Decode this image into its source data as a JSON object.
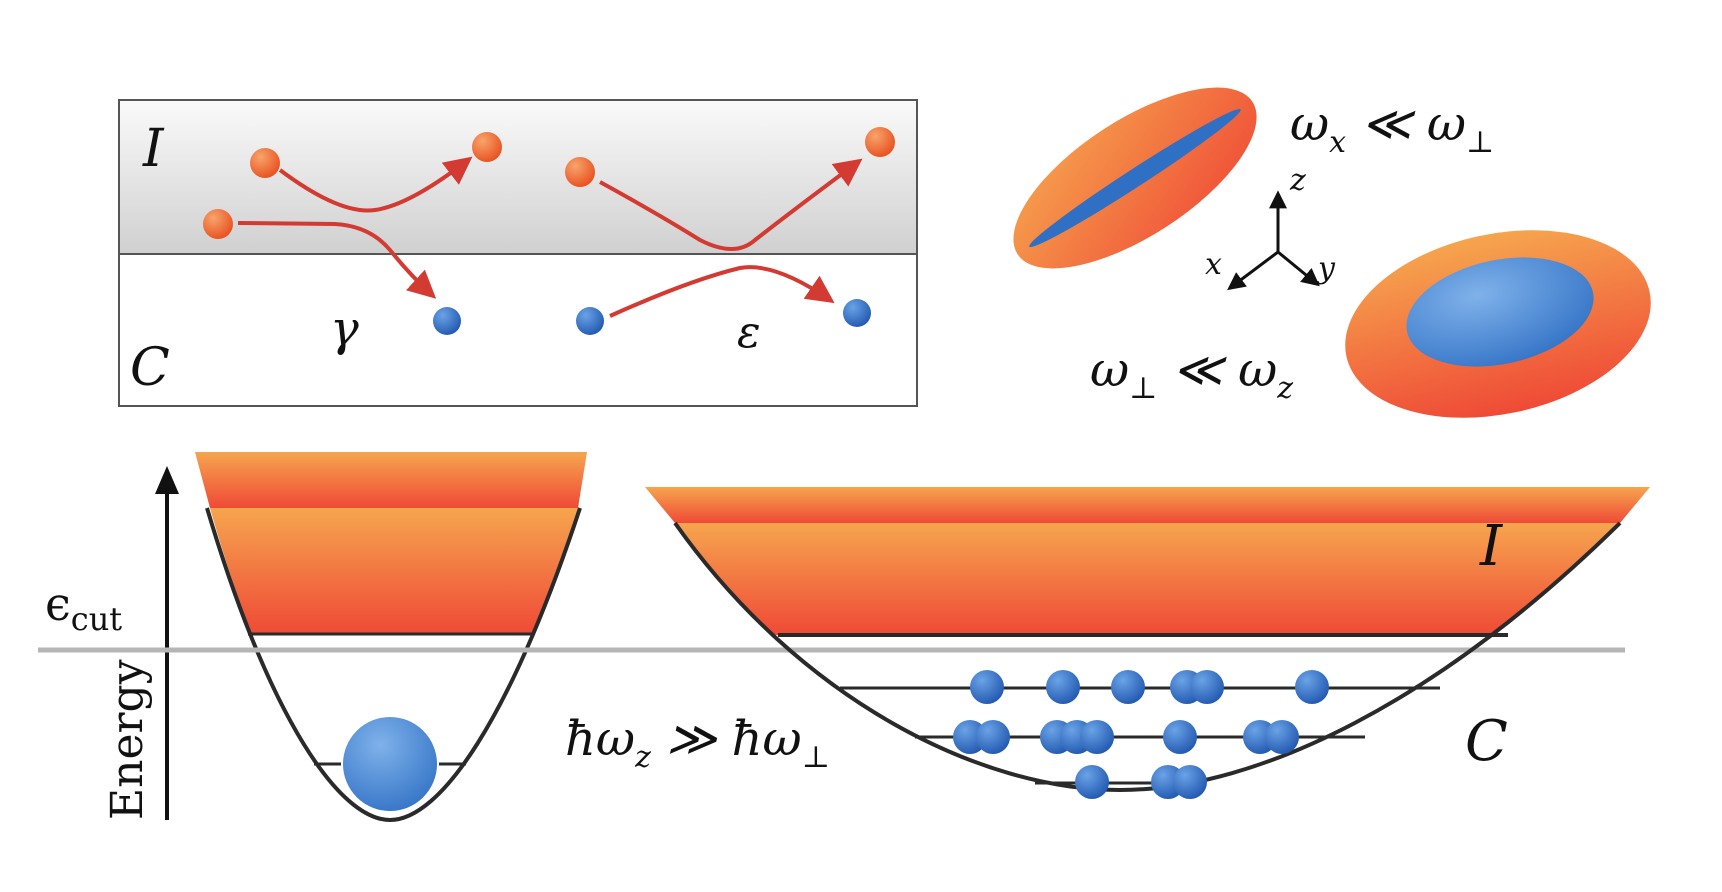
{
  "colors": {
    "incoherent_top": "#f6a54e",
    "incoherent_bottom": "#ef4a36",
    "particle_orange": "#f26a2e",
    "particle_blue": "#2f6fc4",
    "arrow_red": "#d33a32",
    "band_gray": "#d6d6d6",
    "cut_line": "#b5b5b5",
    "curve": "#2a2a2a"
  },
  "inset": {
    "region_top": "I",
    "region_bottom": "C",
    "process_left": "γ",
    "process_right": "ε"
  },
  "traps": {
    "elongated": "ωx ≪ ω⊥",
    "flat": "ω⊥ ≪ ωz",
    "axes": {
      "z": "z",
      "x": "x",
      "y": "y"
    }
  },
  "energy": {
    "axis_label": "Energy",
    "cut_label": "ϵcut",
    "relation": "ħωz ≫ ħω⊥",
    "region_incoherent": "I",
    "region_coherent": "C"
  },
  "icons": [
    "particle-orange",
    "particle-blue",
    "arrow-red",
    "axes-tripod",
    "trap-ellipsoid",
    "harmonic-well"
  ]
}
